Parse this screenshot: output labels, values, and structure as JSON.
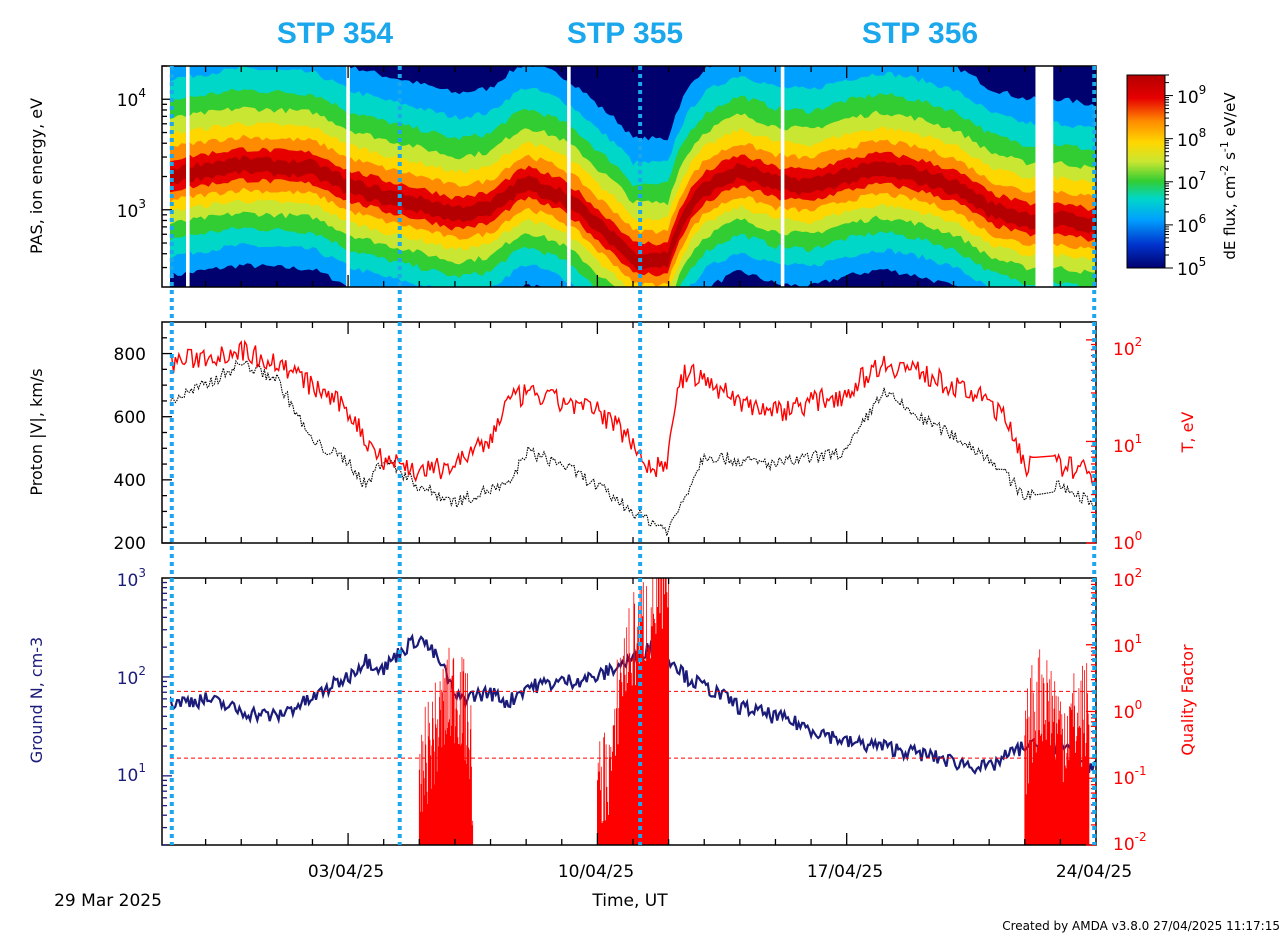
{
  "stp_labels": [
    "STP 354",
    "STP 355",
    "STP 356"
  ],
  "colors": {
    "stp_blue": "#1aa7ec",
    "boundary_blue": "#1aa7ec",
    "density_navy": "#1b1b7a",
    "temperature_red": "#ff0000",
    "velocity_black": "#000000",
    "spectrogram_background": "#00006e",
    "colormap": [
      "#00006e",
      "#0033cc",
      "#00a0ff",
      "#00d7c8",
      "#32cd32",
      "#c8e632",
      "#ffd700",
      "#ff8c00",
      "#e60000",
      "#b40000"
    ]
  },
  "time_axis": {
    "start_date": "29 Mar 2025",
    "end_day": 26,
    "tick_labels": [
      "03/04/25",
      "10/04/25",
      "17/04/25",
      "24/04/25"
    ],
    "tick_days": [
      5,
      12,
      19,
      26
    ],
    "label": "Time, UT"
  },
  "footer": "Created by AMDA v3.8.0 27/04/2025 11:17:15",
  "panels": {
    "spectrogram": {
      "ylabel": "PAS, ion energy, eV",
      "colorbar_label": "dE flux, cm-2 s-1 eV/eV",
      "colorbar_label_parts": [
        "dE flux, cm",
        "-2",
        " s",
        "-1",
        " eV/eV"
      ],
      "colorbar_ticks": [
        {
          "base": "10",
          "exp": "5"
        },
        {
          "base": "10",
          "exp": "6"
        },
        {
          "base": "10",
          "exp": "7"
        },
        {
          "base": "10",
          "exp": "8"
        },
        {
          "base": "10",
          "exp": "9"
        }
      ],
      "y_ticks": [
        {
          "base": "10",
          "exp": "3"
        },
        {
          "base": "10",
          "exp": "4"
        }
      ]
    },
    "velocity": {
      "ylabel_left": "Proton |V|, km/s",
      "ylabel_right": "T, eV",
      "left_ticks": [
        "200",
        "400",
        "600",
        "800"
      ],
      "right_ticks": [
        {
          "base": "10",
          "exp": "0"
        },
        {
          "base": "10",
          "exp": "1"
        },
        {
          "base": "10",
          "exp": "2"
        }
      ]
    },
    "density": {
      "ylabel_left": "Ground N, cm-3",
      "ylabel_right": "Quality Factor",
      "left_ticks": [
        {
          "base": "10",
          "exp": "1"
        },
        {
          "base": "10",
          "exp": "2"
        },
        {
          "base": "10",
          "exp": "3"
        }
      ],
      "right_ticks": [
        {
          "base": "10",
          "exp": "-2"
        },
        {
          "base": "10",
          "exp": "-1"
        },
        {
          "base": "10",
          "exp": "0"
        },
        {
          "base": "10",
          "exp": "1"
        },
        {
          "base": "10",
          "exp": "2"
        }
      ]
    }
  },
  "chart_data": [
    {
      "type": "heatmap",
      "ylabel": "PAS, ion energy, eV",
      "y_scale": "log",
      "ylim": [
        200,
        20000
      ],
      "x_unit": "days since 29 Mar 2025",
      "xlim": [
        0,
        26
      ],
      "z_label": "dE flux, cm-2 s-1 eV/eV",
      "z_scale": "log",
      "zlim": [
        100000,
        3000000000
      ],
      "peak_energy_ev": {
        "x": [
          0,
          2,
          4,
          5,
          6,
          8,
          9,
          10,
          11,
          12,
          13,
          14,
          15,
          16,
          17,
          18,
          19,
          20,
          21,
          22,
          23,
          24,
          25,
          26
        ],
        "y": [
          2000,
          2500,
          2300,
          1600,
          1300,
          900,
          1000,
          1700,
          1300,
          700,
          350,
          350,
          1500,
          2200,
          1700,
          1600,
          2000,
          2300,
          2000,
          1600,
          1000,
          800,
          800,
          700
        ]
      },
      "data_gaps_days": [
        [
          0.45,
          0.55
        ],
        [
          4.95,
          5.05
        ],
        [
          11.15,
          11.25
        ],
        [
          17.15,
          17.25
        ],
        [
          24.3,
          24.8
        ]
      ]
    },
    {
      "type": "line",
      "x_unit": "days since 29 Mar 2025",
      "xlim": [
        0,
        26
      ],
      "series": [
        {
          "name": "Proton |V|",
          "axis": "left",
          "x": [
            0,
            1,
            2,
            3,
            4,
            5,
            5.5,
            6,
            7,
            8,
            9,
            9.5,
            10,
            11,
            12,
            13,
            13.5,
            14,
            14.5,
            15,
            16,
            17,
            18,
            19,
            20,
            21,
            22,
            23,
            24,
            25,
            25.9
          ],
          "y": [
            650,
            700,
            770,
            720,
            520,
            460,
            380,
            470,
            380,
            330,
            370,
            380,
            490,
            450,
            380,
            300,
            270,
            240,
            360,
            480,
            460,
            450,
            470,
            490,
            680,
            600,
            540,
            470,
            350,
            380,
            330
          ]
        },
        {
          "name": "T",
          "axis": "right",
          "x": [
            0,
            1,
            2,
            3,
            4,
            5,
            5.5,
            6,
            7,
            8,
            9,
            9.5,
            10,
            11,
            12,
            13,
            13.5,
            14,
            14.5,
            15,
            16,
            17,
            18,
            19,
            20,
            21,
            22,
            23,
            24,
            25,
            25.9
          ],
          "y": [
            60,
            70,
            80,
            60,
            35,
            20,
            10,
            7,
            5,
            6,
            10,
            25,
            30,
            25,
            20,
            10,
            5,
            7,
            50,
            40,
            25,
            20,
            25,
            30,
            60,
            50,
            35,
            25,
            6,
            6,
            5
          ]
        }
      ],
      "ylim_left": [
        200,
        900
      ],
      "ylim_right": [
        1,
        150
      ],
      "ylabel_left": "Proton |V|, km/s",
      "ylabel_right": "T, eV",
      "y_scale_right": "log"
    },
    {
      "type": "line",
      "x_unit": "days since 29 Mar 2025",
      "xlim": [
        0,
        26
      ],
      "series": [
        {
          "name": "Ground N",
          "axis": "left",
          "x": [
            0,
            1,
            2,
            3,
            4,
            5,
            5.5,
            6,
            7,
            8,
            9,
            9.5,
            10,
            11,
            12,
            13,
            13.5,
            14,
            14.5,
            15,
            16,
            17,
            18,
            19,
            20,
            21,
            22,
            23,
            24,
            25,
            25.9
          ],
          "y": [
            55,
            60,
            45,
            40,
            60,
            100,
            150,
            120,
            250,
            60,
            70,
            55,
            80,
            90,
            100,
            150,
            200,
            160,
            100,
            80,
            50,
            40,
            30,
            22,
            20,
            17,
            14,
            12,
            20,
            20,
            12
          ]
        },
        {
          "name": "Quality Factor",
          "axis": "right",
          "x": [
            7,
            7.5,
            8,
            8.5,
            12,
            12.5,
            13,
            13.5,
            14,
            24,
            24.5,
            25,
            25.8
          ],
          "y": [
            0.03,
            0.5,
            2,
            0.05,
            0.05,
            0.2,
            10,
            30,
            60,
            0.1,
            2,
            0.5,
            1
          ]
        }
      ],
      "ylim_left": [
        2,
        1000
      ],
      "ylim_right": [
        0.01,
        100
      ],
      "ylabel_left": "Ground N, cm-3",
      "ylabel_right": "Quality Factor",
      "y_scale": "log",
      "reference_lines_right": [
        2,
        0.2
      ]
    }
  ],
  "stp_boundaries_days": [
    0.05,
    6.45,
    13.2,
    25.95
  ]
}
